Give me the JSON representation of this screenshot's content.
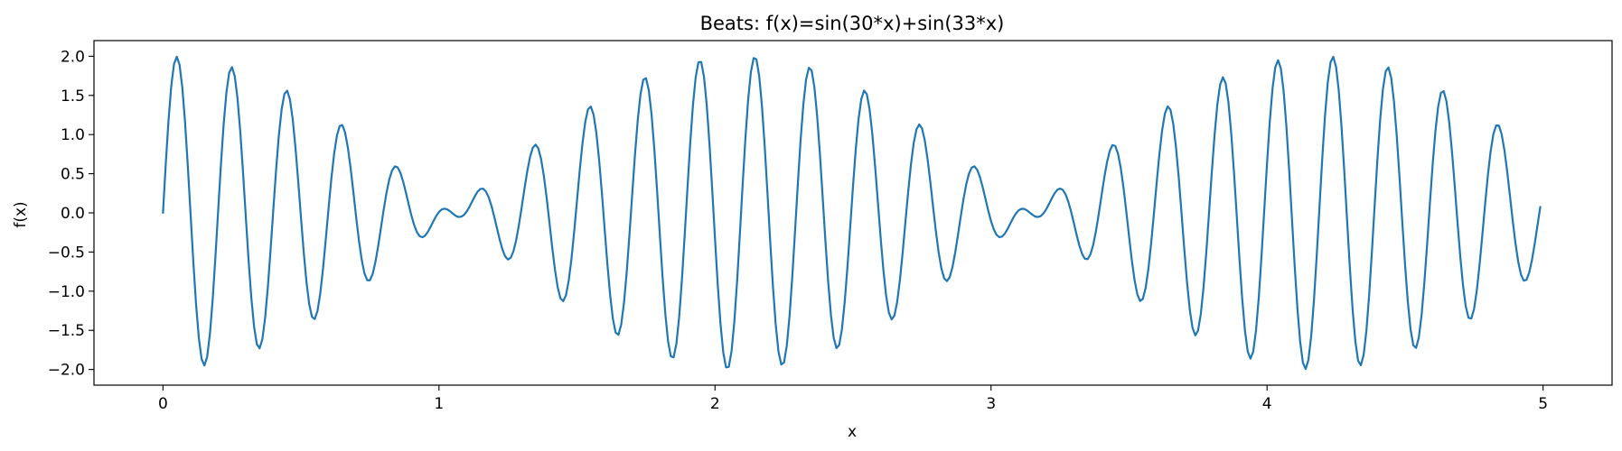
{
  "chart_data": {
    "type": "line",
    "title": "Beats: f(x)=sin(30*x)+sin(33*x)",
    "xlabel": "x",
    "ylabel": "f(x)",
    "xlim": [
      -0.25,
      5.25
    ],
    "ylim": [
      -2.2,
      2.2
    ],
    "xticks": [
      0,
      1,
      2,
      3,
      4,
      5
    ],
    "xtick_labels": [
      "0",
      "1",
      "2",
      "3",
      "4",
      "5"
    ],
    "yticks": [
      -2.0,
      -1.5,
      -1.0,
      -0.5,
      0.0,
      0.5,
      1.0,
      1.5,
      2.0
    ],
    "ytick_labels": [
      "−2.0",
      "−1.5",
      "−1.0",
      "−0.5",
      "0.0",
      "0.5",
      "1.0",
      "1.5",
      "2.0"
    ],
    "grid": false,
    "line_color": "#1f77b4",
    "series": [
      {
        "function": "sin(30*x)+sin(33*x)",
        "x_start": 0,
        "x_end": 4.99,
        "x_step": 0.01
      }
    ]
  }
}
